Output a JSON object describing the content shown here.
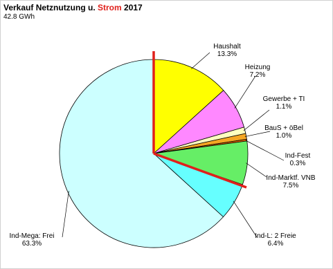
{
  "chart_data": {
    "type": "pie",
    "title_pre": "Verkauf Netznutzung u. ",
    "title_highlight": "Strom",
    "title_post": " 2017",
    "subtitle": "42.8 GWh",
    "slices": [
      {
        "name": "Haushalt",
        "value": 13.3,
        "value_label": "13.3%",
        "color": "#ffff00"
      },
      {
        "name": "Heizung",
        "value": 7.2,
        "value_label": "7.2%",
        "color": "#ff88ff"
      },
      {
        "name": "Gewerbe + TI",
        "value": 1.1,
        "value_label": "1.1%",
        "color": "#ffffc0"
      },
      {
        "name": "BauS + öBel",
        "value": 1.0,
        "value_label": "1.0%",
        "color": "#f5a623"
      },
      {
        "name": "Ind-Fest",
        "value": 0.3,
        "value_label": "0.3%",
        "color": "#e06000"
      },
      {
        "name": "Ind-Marktf. VNB",
        "value": 7.5,
        "value_label": "7.5%",
        "color": "#66ee66"
      },
      {
        "name": "Ind-L: 2 Freie",
        "value": 6.4,
        "value_label": "6.4%",
        "color": "#66ffff"
      },
      {
        "name": "Ind-Mega: Frei",
        "value": 63.3,
        "value_label": "63.3%",
        "color": "#ccffff"
      }
    ],
    "accent_color": "#e0201b"
  }
}
